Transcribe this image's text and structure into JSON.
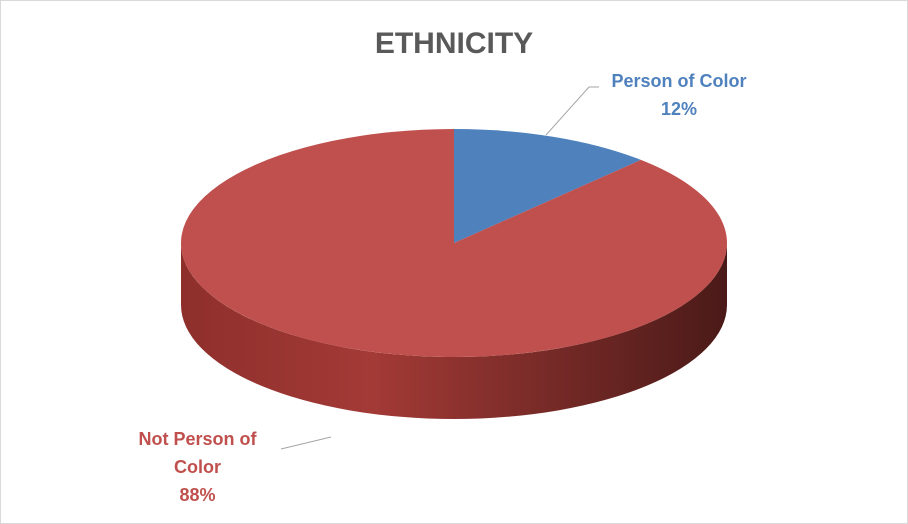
{
  "chart_data": {
    "type": "pie",
    "title": "ETHNICITY",
    "categories": [
      "Person of Color",
      "Not Person of Color"
    ],
    "values": [
      12,
      88
    ],
    "value_labels": [
      "12%",
      "88%"
    ],
    "colors": [
      "#4f81bd",
      "#c0504d"
    ]
  }
}
